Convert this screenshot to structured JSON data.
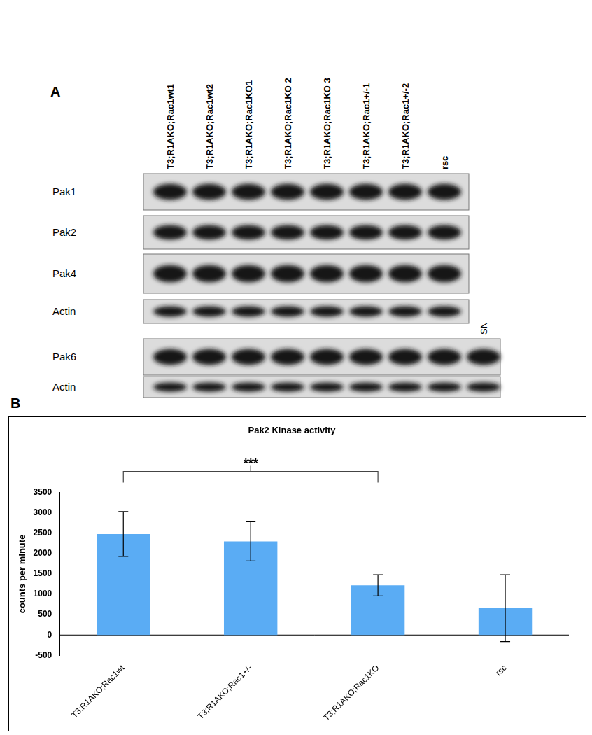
{
  "blot": {
    "panel_label": "A",
    "lanes": [
      "T3;R1AKO;Rac1wt1",
      "T3;R1AKO;Rac1wt2",
      "T3;R1AKO;Rac1KO1",
      "T3;R1AKO;Rac1KO 2",
      "T3;R1AKO;Rac1KO 3",
      "T3;R1AKO;Rac1+/-1",
      "T3;R1AKO;Rac1+/-2",
      "rsc"
    ],
    "extra_lane": "SN",
    "upper_rows": [
      "Pak1",
      "Pak2",
      "Pak4",
      "Actin"
    ],
    "lower_rows": [
      "Pak6",
      "Actin"
    ]
  },
  "chart_data": {
    "panel_label": "B",
    "type": "bar",
    "title": "Pak2 Kinase activity",
    "y_label": "counts per minute",
    "categories": [
      "T3;R1AKO;Rac1wt",
      "T3;R1AKO;Rac1+/-",
      "T3;R1AKO;Rac1KO",
      "rsc"
    ],
    "values": [
      2480,
      2300,
      1220,
      660
    ],
    "errors": [
      550,
      480,
      260,
      820
    ],
    "color": "#5aacf4",
    "ylim": [
      -500,
      3500
    ],
    "yticks": [
      -500,
      0,
      500,
      1000,
      1500,
      2000,
      2500,
      3000,
      3500
    ],
    "grid": false,
    "annotations": [
      {
        "text": "***",
        "from": "T3;R1AKO;Rac1wt",
        "to": "T3;R1AKO;Rac1KO"
      }
    ]
  }
}
